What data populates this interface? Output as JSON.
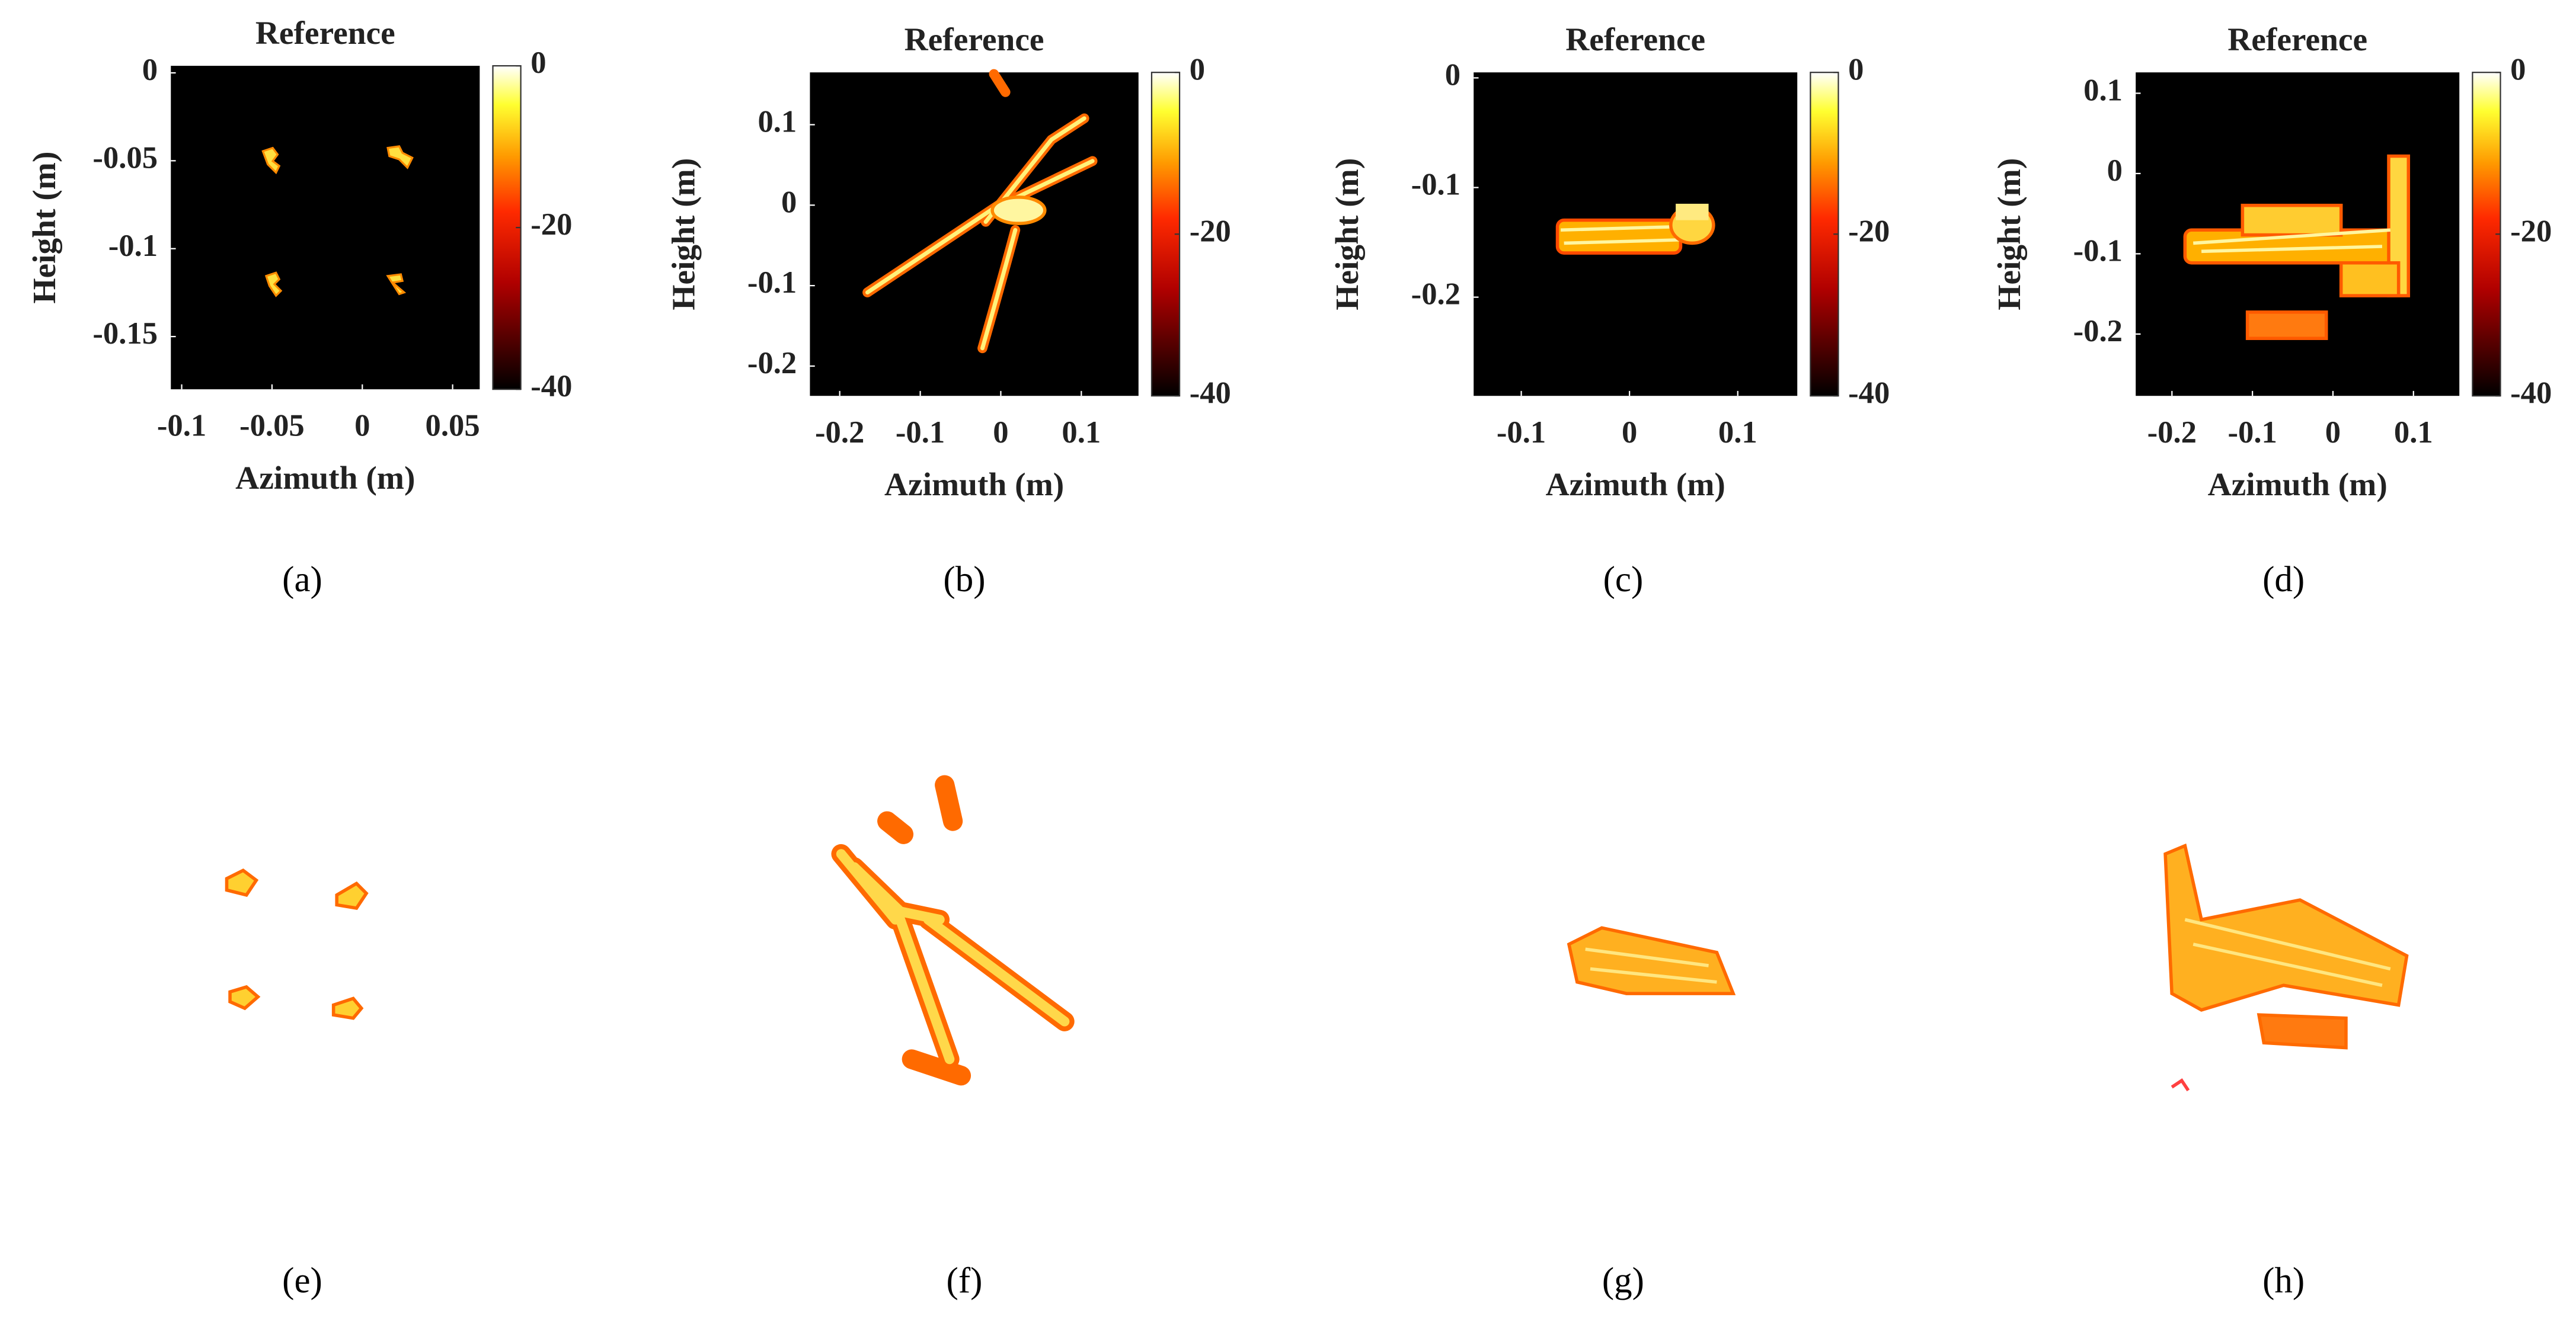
{
  "chart_data": [
    {
      "type": "heatmap",
      "title": "Reference",
      "xlabel": "Azimuth (m)",
      "ylabel": "Height (m)",
      "xlim": [
        -0.106,
        0.065
      ],
      "ylim": [
        -0.18,
        0.004
      ],
      "xticks": [
        -0.1,
        -0.05,
        0,
        0.05
      ],
      "yticks": [
        0,
        -0.05,
        -0.1,
        -0.15
      ],
      "clim": [
        -40,
        0
      ],
      "cticks": [
        0,
        -20,
        -40
      ],
      "caption": "(a)"
    },
    {
      "type": "heatmap",
      "title": "Reference",
      "xlabel": "Azimuth (m)",
      "ylabel": "Height (m)",
      "xlim": [
        -0.237,
        0.171
      ],
      "ylim": [
        -0.237,
        0.165
      ],
      "xticks": [
        -0.2,
        -0.1,
        0,
        0.1
      ],
      "yticks": [
        0.1,
        0,
        -0.1,
        -0.2
      ],
      "clim": [
        -40,
        0
      ],
      "cticks": [
        0,
        -20,
        -40
      ],
      "caption": "(b)"
    },
    {
      "type": "heatmap",
      "title": "Reference",
      "xlabel": "Azimuth (m)",
      "ylabel": "Height (m)",
      "xlim": [
        -0.144,
        0.155
      ],
      "ylim": [
        -0.29,
        0.005
      ],
      "xticks": [
        -0.1,
        0,
        0.1
      ],
      "yticks": [
        0,
        -0.1,
        -0.2
      ],
      "clim": [
        -40,
        0
      ],
      "cticks": [
        0,
        -20,
        -40
      ],
      "caption": "(c)"
    },
    {
      "type": "heatmap",
      "title": "Reference",
      "xlabel": "Azimuth (m)",
      "ylabel": "Height (m)",
      "xlim": [
        -0.245,
        0.157
      ],
      "ylim": [
        -0.277,
        0.126
      ],
      "xticks": [
        -0.2,
        -0.1,
        0,
        0.1
      ],
      "yticks": [
        0.1,
        0,
        -0.1,
        -0.2
      ],
      "clim": [
        -40,
        0
      ],
      "cticks": [
        0,
        -20,
        -40
      ],
      "caption": "(d)"
    }
  ],
  "renderings": [
    {
      "caption": "(e)"
    },
    {
      "caption": "(f)"
    },
    {
      "caption": "(g)"
    },
    {
      "caption": "(h)"
    }
  ]
}
